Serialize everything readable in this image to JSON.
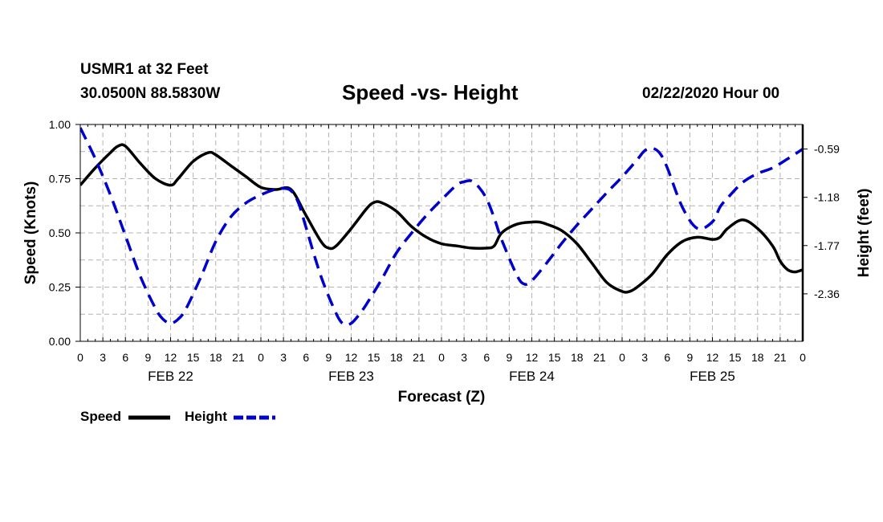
{
  "header": {
    "station": "USMR1 at 32 Feet",
    "coords": "30.0500N 88.5830W",
    "title": "Speed -vs- Height",
    "stamp": "02/22/2020 Hour 00"
  },
  "chart_data": {
    "type": "line",
    "title": "Speed -vs- Height",
    "xlabel": "Forecast (Z)",
    "ylabel_left": "Speed (Knots)",
    "ylabel_right": "Height (feet)",
    "grid": true,
    "xlim": [
      0,
      96
    ],
    "ylim_left": [
      0,
      1.0
    ],
    "ylim_right": [
      -2.94,
      -0.29
    ],
    "x_tick_labels": [
      "0",
      "3",
      "6",
      "9",
      "12",
      "15",
      "18",
      "21",
      "0",
      "3",
      "6",
      "9",
      "12",
      "15",
      "18",
      "21",
      "0",
      "3",
      "6",
      "9",
      "12",
      "15",
      "18",
      "21",
      "0",
      "3",
      "6",
      "9",
      "12",
      "15",
      "18",
      "21",
      "0"
    ],
    "date_labels": [
      {
        "hour": 12,
        "label": "FEB 22"
      },
      {
        "hour": 36,
        "label": "FEB 23"
      },
      {
        "hour": 60,
        "label": "FEB 24"
      },
      {
        "hour": 84,
        "label": "FEB 25"
      }
    ],
    "left_ticks": [
      {
        "value": 0.0,
        "label": "0.00"
      },
      {
        "value": 0.25,
        "label": "0.25"
      },
      {
        "value": 0.5,
        "label": "0.50"
      },
      {
        "value": 0.75,
        "label": "0.75"
      },
      {
        "value": 1.0,
        "label": "1.00"
      }
    ],
    "right_ticks": [
      {
        "value": -0.59,
        "label": "-0.59"
      },
      {
        "value": -1.18,
        "label": "-1.18"
      },
      {
        "value": -1.77,
        "label": "-1.77"
      },
      {
        "value": -2.36,
        "label": "-2.36"
      }
    ],
    "series": [
      {
        "name": "Speed",
        "axis": "left",
        "color": "#000000",
        "dash": "solid",
        "x": [
          0,
          2,
          4,
          5,
          6,
          8,
          10,
          12,
          13,
          15,
          17,
          18,
          20,
          22,
          24,
          26,
          28,
          30,
          32,
          33,
          34,
          36,
          38,
          39,
          40,
          42,
          44,
          46,
          48,
          50,
          52,
          54,
          55,
          56,
          58,
          60,
          61,
          62,
          64,
          66,
          68,
          70,
          72,
          73,
          74,
          76,
          78,
          80,
          82,
          84,
          85,
          86,
          88,
          90,
          92,
          93,
          94,
          95,
          96
        ],
        "values": [
          0.72,
          0.8,
          0.87,
          0.9,
          0.9,
          0.82,
          0.75,
          0.72,
          0.75,
          0.83,
          0.87,
          0.86,
          0.81,
          0.76,
          0.71,
          0.7,
          0.7,
          0.58,
          0.46,
          0.43,
          0.44,
          0.52,
          0.61,
          0.64,
          0.64,
          0.6,
          0.53,
          0.48,
          0.45,
          0.44,
          0.43,
          0.43,
          0.44,
          0.5,
          0.54,
          0.55,
          0.55,
          0.54,
          0.51,
          0.45,
          0.36,
          0.27,
          0.23,
          0.23,
          0.25,
          0.31,
          0.4,
          0.46,
          0.48,
          0.47,
          0.48,
          0.52,
          0.56,
          0.52,
          0.44,
          0.37,
          0.33,
          0.32,
          0.33
        ]
      },
      {
        "name": "Height",
        "axis": "right",
        "color": "#0000cc",
        "dash": "dashed",
        "x": [
          0,
          2,
          4,
          6,
          8,
          10,
          11,
          12,
          13,
          14,
          16,
          18,
          20,
          22,
          24,
          26,
          27,
          28,
          29,
          30,
          32,
          34,
          35,
          36,
          37,
          38,
          40,
          42,
          44,
          46,
          48,
          50,
          51,
          52,
          53,
          54,
          55,
          56,
          58,
          59,
          60,
          62,
          64,
          66,
          68,
          70,
          72,
          74,
          75,
          76,
          77,
          78,
          80,
          82,
          84,
          85,
          86,
          88,
          90,
          92,
          94,
          96
        ],
        "values": [
          -0.33,
          -0.71,
          -1.15,
          -1.65,
          -2.15,
          -2.54,
          -2.67,
          -2.72,
          -2.67,
          -2.55,
          -2.16,
          -1.72,
          -1.42,
          -1.25,
          -1.15,
          -1.08,
          -1.07,
          -1.1,
          -1.25,
          -1.55,
          -2.15,
          -2.6,
          -2.73,
          -2.72,
          -2.62,
          -2.49,
          -2.19,
          -1.86,
          -1.62,
          -1.4,
          -1.21,
          -1.03,
          -0.99,
          -0.98,
          -1.06,
          -1.2,
          -1.43,
          -1.7,
          -2.13,
          -2.24,
          -2.2,
          -1.98,
          -1.74,
          -1.52,
          -1.32,
          -1.12,
          -0.93,
          -0.72,
          -0.61,
          -0.58,
          -0.64,
          -0.82,
          -1.3,
          -1.56,
          -1.48,
          -1.3,
          -1.19,
          -1.0,
          -0.89,
          -0.82,
          -0.71,
          -0.59
        ]
      }
    ],
    "legend": {
      "position": "bottom-left",
      "entries": [
        {
          "label": "Speed",
          "color": "#000000",
          "dash": "solid"
        },
        {
          "label": "Height",
          "color": "#0000cc",
          "dash": "dashed"
        }
      ]
    }
  }
}
